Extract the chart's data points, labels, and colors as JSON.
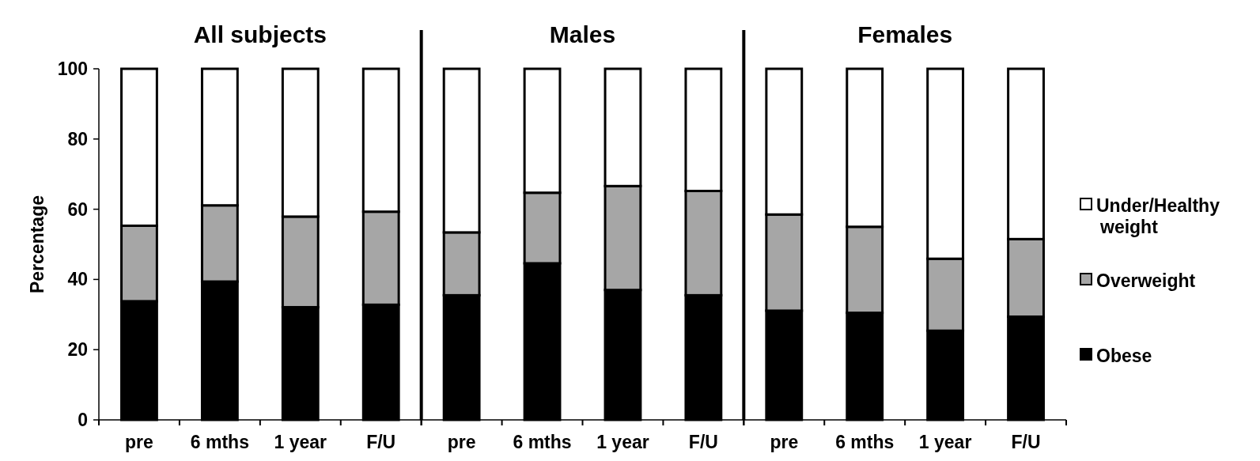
{
  "chart_data": [
    {
      "type": "bar",
      "title": "All subjects",
      "stacked": true,
      "categories": [
        "pre",
        "6 mths",
        "1 year",
        "F/U"
      ],
      "ylabel": "Percentage",
      "ylim": [
        0,
        100
      ],
      "yticks": [
        0,
        20,
        40,
        60,
        80,
        100
      ],
      "series": [
        {
          "color": "#000000",
          "values": [
            33.8,
            39.4,
            32.1,
            32.8
          ]
        },
        {
          "color": "#a6a6a6",
          "values": [
            21.5,
            21.7,
            25.8,
            26.5
          ]
        },
        {
          "color": "#ffffff",
          "values": [
            44.7,
            38.9,
            42.1,
            40.7
          ]
        }
      ]
    },
    {
      "type": "bar",
      "title": "Males",
      "stacked": true,
      "categories": [
        "pre",
        "6 mths",
        "1 year",
        "F/U"
      ],
      "ylim": [
        0,
        100
      ],
      "tick_labels": "x",
      "series": [
        {
          "color": "#000000",
          "values": [
            35.5,
            44.6,
            37.0,
            35.5
          ]
        },
        {
          "color": "#a6a6a6",
          "values": [
            17.9,
            20.1,
            29.6,
            29.7
          ]
        },
        {
          "color": "#ffffff",
          "values": [
            46.6,
            35.3,
            33.4,
            34.8
          ]
        }
      ]
    },
    {
      "type": "bar",
      "title": "Females",
      "stacked": true,
      "categories": [
        "pre",
        "6 mths",
        "1 year",
        "F/U"
      ],
      "ylim": [
        0,
        100
      ],
      "tick_labels": "x",
      "legend": "right",
      "series": [
        {
          "name": "Obese",
          "color": "#000000",
          "values": [
            31.1,
            30.5,
            25.4,
            29.4
          ]
        },
        {
          "name": "Overweight",
          "color": "#a6a6a6",
          "values": [
            27.4,
            24.5,
            20.5,
            22.1
          ]
        },
        {
          "name": "Under/Healthy weight",
          "color": "#ffffff",
          "values": [
            41.5,
            45.0,
            54.1,
            48.5
          ]
        }
      ]
    }
  ]
}
